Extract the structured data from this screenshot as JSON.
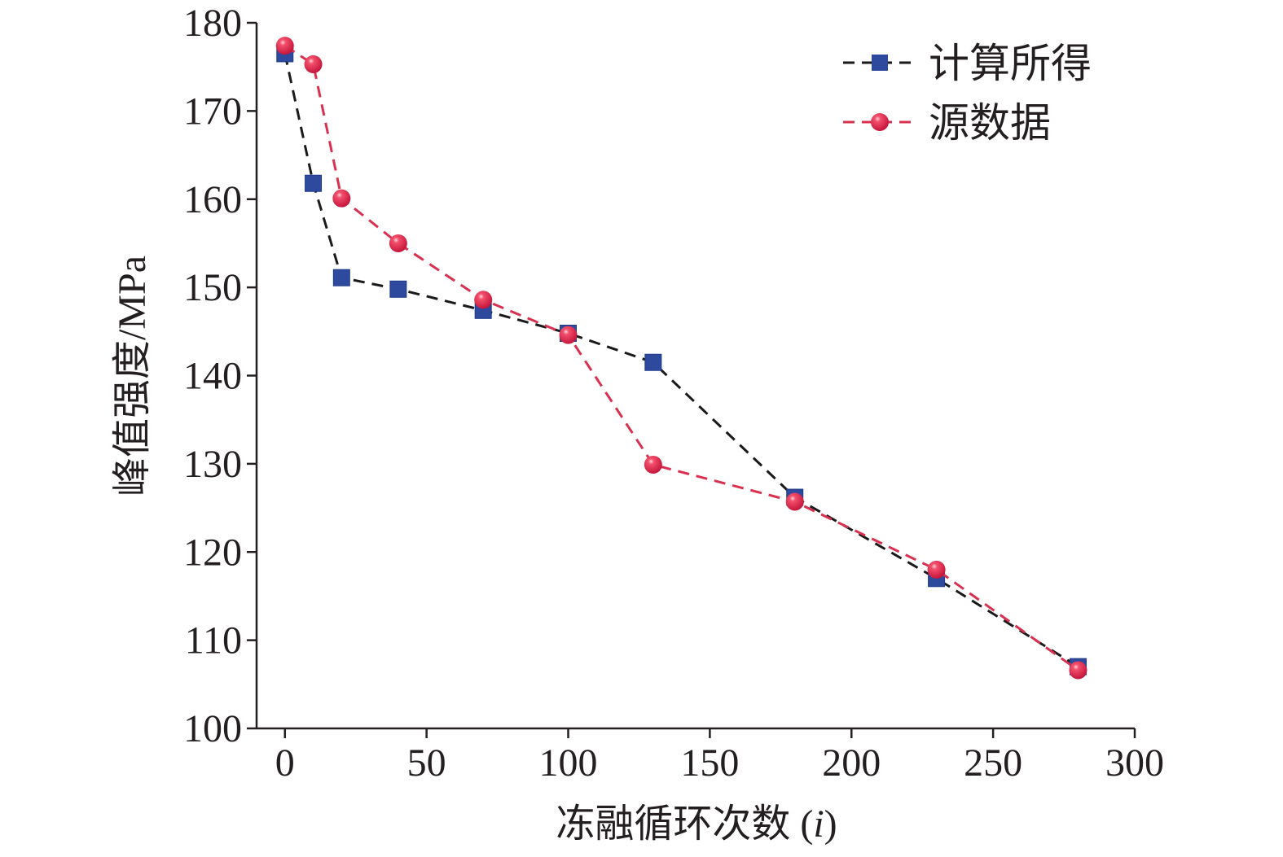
{
  "chart_data": {
    "type": "line",
    "xlabel": "冻融循环次数 (i)",
    "ylabel": "峰值强度/MPa",
    "xlim": [
      -10,
      300
    ],
    "ylim": [
      100,
      180
    ],
    "xticks": [
      0,
      50,
      100,
      150,
      200,
      250,
      300
    ],
    "yticks": [
      100,
      110,
      120,
      130,
      140,
      150,
      160,
      170,
      180
    ],
    "grid": false,
    "legend_position": "top-right",
    "series": [
      {
        "name": "计算所得",
        "marker": "square",
        "line_style": "dashed",
        "line_color": "#1a1a1a",
        "marker_color": "#2e4a9e",
        "x": [
          0,
          10,
          20,
          40,
          70,
          100,
          130,
          180,
          230,
          280
        ],
        "y": [
          176.5,
          161.8,
          151.1,
          149.8,
          147.4,
          144.8,
          141.5,
          126.2,
          117.0,
          107.0
        ]
      },
      {
        "name": "源数据",
        "marker": "circle",
        "line_style": "dashed",
        "line_color": "#d9304f",
        "marker_color": "#e0284a",
        "x": [
          0,
          10,
          20,
          40,
          70,
          100,
          130,
          180,
          230,
          280
        ],
        "y": [
          177.4,
          175.3,
          160.1,
          155.0,
          148.6,
          144.6,
          129.9,
          125.7,
          118.0,
          106.6
        ]
      }
    ]
  }
}
